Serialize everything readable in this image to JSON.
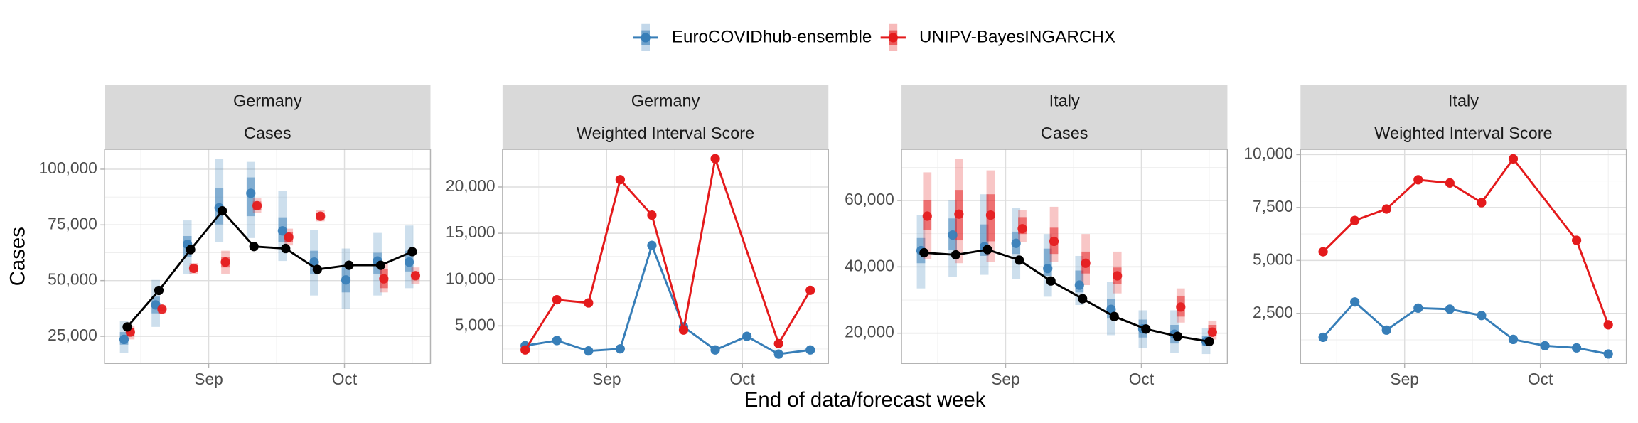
{
  "xlabel": "End of data/forecast week",
  "legend_position": "top",
  "chart_data": [
    {
      "type": "interval",
      "facets": [
        "Germany",
        "Cases"
      ],
      "ylabel": "Cases",
      "xlim": [
        -23,
        49
      ],
      "xticks": [
        {
          "value": 0,
          "label": "Sep"
        },
        {
          "value": 30,
          "label": "Oct"
        }
      ],
      "ylim": [
        12800,
        108900
      ],
      "yticks": [
        {
          "value": 25000,
          "label": "25,000"
        },
        {
          "value": 50000,
          "label": "50,000"
        },
        {
          "value": 75000,
          "label": "75,000"
        },
        {
          "value": 100000,
          "label": "100,000"
        }
      ],
      "grid": true,
      "observed": {
        "color": "#000000",
        "x": [
          -18,
          -11,
          -4,
          3,
          10,
          17,
          24,
          31,
          38,
          45
        ],
        "values": [
          29200,
          45600,
          63900,
          81300,
          65300,
          64400,
          55000,
          56900,
          56900,
          63000
        ]
      },
      "series": [
        {
          "name": "EuroCOVIDhub-ensemble",
          "color": "#377eb8",
          "x": [
            -18,
            -11,
            -4,
            3,
            10,
            17,
            24,
            31,
            38,
            45
          ],
          "values": [
            23600,
            39100,
            66300,
            82700,
            89200,
            72300,
            58300,
            50300,
            58800,
            58300
          ],
          "lower_50": [
            21250,
            35300,
            60600,
            75200,
            78900,
            67200,
            53100,
            44700,
            53100,
            54100
          ],
          "upper_50": [
            26900,
            42800,
            70000,
            91600,
            96300,
            78400,
            63400,
            56900,
            62500,
            63400
          ],
          "lower_90": [
            17500,
            29200,
            53100,
            67200,
            69100,
            58800,
            43300,
            37200,
            43300,
            46600
          ],
          "upper_90": [
            32000,
            50300,
            77000,
            104700,
            103300,
            90200,
            72800,
            64400,
            71400,
            74700
          ]
        },
        {
          "name": "UNIPV-BayesINGARCHX",
          "color": "#e41a1c",
          "x": [
            -18,
            -11,
            -4,
            3,
            10,
            17,
            24,
            38,
            45
          ],
          "values": [
            26900,
            37200,
            55500,
            58300,
            83600,
            69500,
            78900,
            50800,
            52200
          ],
          "lower_50": [
            25000,
            36250,
            54100,
            55900,
            81700,
            67200,
            77500,
            46600,
            50300
          ],
          "upper_50": [
            28750,
            38100,
            56900,
            60600,
            85500,
            71900,
            80300,
            55000,
            54100
          ],
          "lower_90": [
            23600,
            35300,
            53100,
            53100,
            80300,
            65800,
            76600,
            44700,
            48400
          ],
          "upper_90": [
            29700,
            39100,
            57800,
            63400,
            86900,
            73300,
            81700,
            58300,
            55900
          ]
        }
      ]
    },
    {
      "type": "line",
      "facets": [
        "Germany",
        "Weighted Interval Score"
      ],
      "xlim": [
        -23,
        49
      ],
      "xticks": [
        {
          "value": 0,
          "label": "Sep"
        },
        {
          "value": 30,
          "label": "Oct"
        }
      ],
      "ylim": [
        940,
        24060
      ],
      "yticks": [
        {
          "value": 5000,
          "label": "5,000"
        },
        {
          "value": 10000,
          "label": "10,000"
        },
        {
          "value": 15000,
          "label": "15,000"
        },
        {
          "value": 20000,
          "label": "20,000"
        }
      ],
      "grid": true,
      "series": [
        {
          "name": "EuroCOVIDhub-ensemble",
          "color": "#377eb8",
          "x": [
            -18,
            -11,
            -4,
            3,
            10,
            17,
            24,
            31,
            38,
            45
          ],
          "values": [
            2860,
            3420,
            2290,
            2520,
            13690,
            4890,
            2400,
            3870,
            1950,
            2400
          ]
        },
        {
          "name": "UNIPV-BayesINGARCHX",
          "color": "#e41a1c",
          "x": [
            -18,
            -11,
            -4,
            3,
            10,
            17,
            24,
            38,
            45
          ],
          "values": [
            2400,
            7820,
            7480,
            20790,
            16960,
            4550,
            23050,
            3080,
            8840
          ]
        }
      ]
    },
    {
      "type": "interval",
      "facets": [
        "Italy",
        "Cases"
      ],
      "xlim": [
        -23,
        49
      ],
      "xticks": [
        {
          "value": 0,
          "label": "Sep"
        },
        {
          "value": 30,
          "label": "Oct"
        }
      ],
      "ylim": [
        10870,
        75430
      ],
      "yticks": [
        {
          "value": 20000,
          "label": "20,000"
        },
        {
          "value": 40000,
          "label": "40,000"
        },
        {
          "value": 60000,
          "label": "60,000"
        }
      ],
      "grid": true,
      "observed": {
        "color": "#000000",
        "x": [
          -18,
          -11,
          -4,
          3,
          10,
          17,
          24,
          31,
          38,
          45
        ],
        "values": [
          44260,
          43630,
          45200,
          42050,
          35750,
          30400,
          25040,
          21260,
          19060,
          17480
        ]
      },
      "series": [
        {
          "name": "EuroCOVIDhub-ensemble",
          "color": "#377eb8",
          "x": [
            -18,
            -11,
            -4,
            3,
            10,
            17,
            24,
            31,
            38,
            45
          ],
          "values": [
            44900,
            49600,
            46100,
            47100,
            39500,
            34500,
            27200,
            21300,
            19700,
            17500
          ],
          "lower_50": [
            41100,
            45200,
            43300,
            43900,
            37300,
            32300,
            24400,
            18700,
            16900,
            16200
          ],
          "upper_50": [
            48700,
            54600,
            52800,
            50600,
            45500,
            38900,
            30400,
            24100,
            22500,
            19100
          ],
          "lower_90": [
            33500,
            37000,
            37600,
            36400,
            31000,
            28500,
            19400,
            15600,
            14000,
            13700
          ],
          "upper_90": [
            55600,
            60000,
            61900,
            57800,
            49900,
            43300,
            35400,
            26900,
            26900,
            21600
          ]
        },
        {
          "name": "UNIPV-BayesINGARCHX",
          "color": "#e41a1c",
          "x": [
            -18,
            -11,
            -4,
            3,
            10,
            17,
            24,
            38,
            45
          ],
          "values": [
            55300,
            55900,
            55600,
            51500,
            47700,
            41100,
            37300,
            27900,
            20300
          ],
          "lower_50": [
            51200,
            48000,
            47700,
            49900,
            43900,
            38000,
            34800,
            25000,
            19100
          ],
          "upper_50": [
            60000,
            63200,
            61900,
            55000,
            51800,
            44600,
            39800,
            31300,
            22500
          ],
          "lower_90": [
            42400,
            41100,
            41400,
            47400,
            41400,
            34500,
            32000,
            23200,
            18100
          ],
          "upper_90": [
            68500,
            72600,
            69100,
            57200,
            58100,
            49900,
            44600,
            33500,
            23800
          ]
        }
      ]
    },
    {
      "type": "line",
      "facets": [
        "Italy",
        "Weighted Interval Score"
      ],
      "xlim": [
        -23,
        49
      ],
      "xticks": [
        {
          "value": 0,
          "label": "Sep"
        },
        {
          "value": 30,
          "label": "Oct"
        }
      ],
      "ylim": [
        133,
        10247
      ],
      "yticks": [
        {
          "value": 2500,
          "label": "2,500"
        },
        {
          "value": 5000,
          "label": "5,000"
        },
        {
          "value": 7500,
          "label": "7,500"
        },
        {
          "value": 10000,
          "label": "10,000"
        }
      ],
      "grid": true,
      "series": [
        {
          "name": "EuroCOVIDhub-ensemble",
          "color": "#377eb8",
          "x": [
            -18,
            -11,
            -4,
            3,
            10,
            17,
            24,
            31,
            38,
            45
          ],
          "values": [
            1370,
            3040,
            1710,
            2750,
            2700,
            2400,
            1270,
            970,
            870,
            580
          ]
        },
        {
          "name": "UNIPV-BayesINGARCHX",
          "color": "#e41a1c",
          "x": [
            -18,
            -11,
            -4,
            3,
            10,
            17,
            24,
            38,
            45
          ],
          "values": [
            5410,
            6890,
            7430,
            8810,
            8660,
            7730,
            9800,
            5950,
            1960
          ]
        }
      ]
    }
  ]
}
